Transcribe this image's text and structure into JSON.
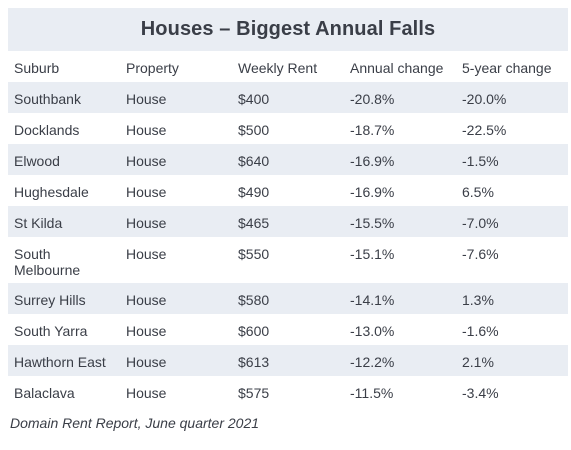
{
  "title": "Houses – Biggest Annual Falls",
  "columns": [
    "Suburb",
    "Property",
    "Weekly Rent",
    "Annual change",
    "5-year change"
  ],
  "rows": [
    {
      "suburb": "Southbank",
      "property": "House",
      "rent": "$400",
      "annual": "-20.8%",
      "five_year": "-20.0%"
    },
    {
      "suburb": "Docklands",
      "property": "House",
      "rent": "$500",
      "annual": "-18.7%",
      "five_year": "-22.5%"
    },
    {
      "suburb": "Elwood",
      "property": "House",
      "rent": "$640",
      "annual": "-16.9%",
      "five_year": "-1.5%"
    },
    {
      "suburb": "Hughesdale",
      "property": "House",
      "rent": "$490",
      "annual": "-16.9%",
      "five_year": "6.5%"
    },
    {
      "suburb": "St Kilda",
      "property": "House",
      "rent": "$465",
      "annual": "-15.5%",
      "five_year": "-7.0%"
    },
    {
      "suburb": "South Melbourne",
      "property": "House",
      "rent": "$550",
      "annual": "-15.1%",
      "five_year": "-7.6%"
    },
    {
      "suburb": "Surrey Hills",
      "property": "House",
      "rent": "$580",
      "annual": "-14.1%",
      "five_year": "1.3%"
    },
    {
      "suburb": "South Yarra",
      "property": "House",
      "rent": "$600",
      "annual": "-13.0%",
      "five_year": "-1.6%"
    },
    {
      "suburb": "Hawthorn East",
      "property": "House",
      "rent": "$613",
      "annual": "-12.2%",
      "five_year": "2.1%"
    },
    {
      "suburb": "Balaclava",
      "property": "House",
      "rent": "$575",
      "annual": "-11.5%",
      "five_year": "-3.4%"
    }
  ],
  "source": "Domain Rent Report, June quarter 2021",
  "colors": {
    "stripe": "#e9edf3",
    "text": "#3a3e47"
  }
}
